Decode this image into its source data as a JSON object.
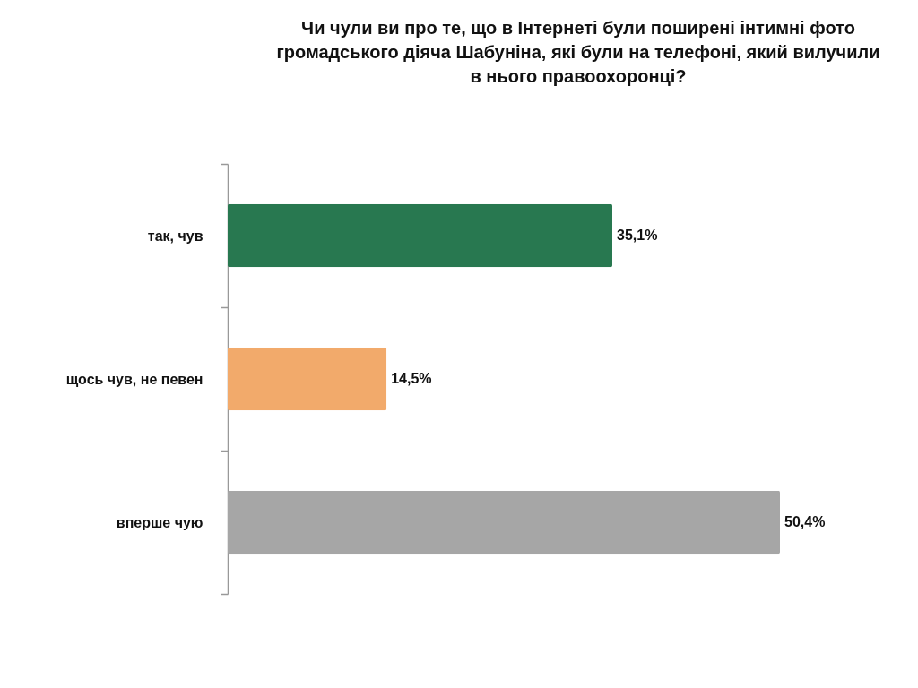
{
  "chart_data": {
    "type": "bar",
    "orientation": "horizontal",
    "title": "Чи чули ви про те, що в Інтернеті були поширені інтимні фото громадського діяча Шабуніна, які були на телефоні, який вилучили в нього правоохоронці?",
    "categories": [
      "так, чув",
      "щось чув, не певен",
      "вперше чую"
    ],
    "values": [
      35.1,
      14.5,
      50.4
    ],
    "value_labels": [
      "35,1%",
      "14,5%",
      "50,4%"
    ],
    "colors": [
      "#287850",
      "#f2aa6b",
      "#a6a6a6"
    ]
  }
}
